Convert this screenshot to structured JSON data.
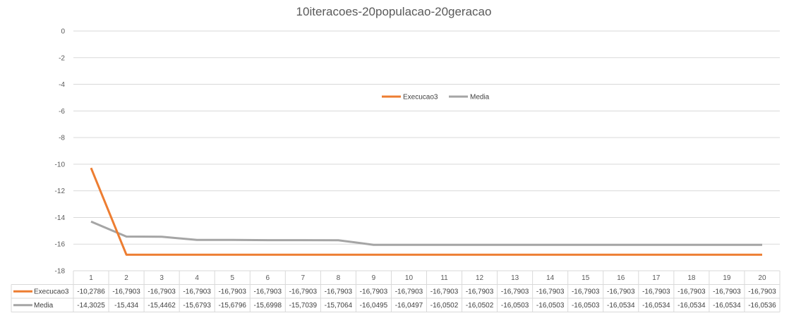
{
  "chart_data": {
    "type": "line",
    "title": "10iteracoes-20populacao-20geracao",
    "ylim": [
      -18,
      0
    ],
    "y_ticks": [
      "0",
      "-2",
      "-4",
      "-6",
      "-8",
      "-10",
      "-12",
      "-14",
      "-16",
      "-18"
    ],
    "y_tick_values": [
      0,
      -2,
      -4,
      -6,
      -8,
      -10,
      -12,
      -14,
      -16,
      -18
    ],
    "categories": [
      "1",
      "2",
      "3",
      "4",
      "5",
      "6",
      "7",
      "8",
      "9",
      "10",
      "11",
      "12",
      "13",
      "14",
      "15",
      "16",
      "17",
      "18",
      "19",
      "20"
    ],
    "grid": true,
    "legend_position": "center-right",
    "series": [
      {
        "name": "Execucao3",
        "color": "#ED7D31",
        "values": [
          -10.2786,
          -16.7903,
          -16.7903,
          -16.7903,
          -16.7903,
          -16.7903,
          -16.7903,
          -16.7903,
          -16.7903,
          -16.7903,
          -16.7903,
          -16.7903,
          -16.7903,
          -16.7903,
          -16.7903,
          -16.7903,
          -16.7903,
          -16.7903,
          -16.7903,
          -16.7903
        ],
        "table_labels": [
          "-10,2786",
          "-16,7903",
          "-16,7903",
          "-16,7903",
          "-16,7903",
          "-16,7903",
          "-16,7903",
          "-16,7903",
          "-16,7903",
          "-16,7903",
          "-16,7903",
          "-16,7903",
          "-16,7903",
          "-16,7903",
          "-16,7903",
          "-16,7903",
          "-16,7903",
          "-16,7903",
          "-16,7903",
          "-16,7903"
        ]
      },
      {
        "name": "Media",
        "color": "#A5A5A5",
        "values": [
          -14.3025,
          -15.434,
          -15.4462,
          -15.6793,
          -15.6796,
          -15.6998,
          -15.7039,
          -15.7064,
          -16.0495,
          -16.0497,
          -16.0502,
          -16.0502,
          -16.0503,
          -16.0503,
          -16.0503,
          -16.0534,
          -16.0534,
          -16.0534,
          -16.0534,
          -16.0536
        ],
        "table_labels": [
          "-14,3025",
          "-15,434",
          "-15,4462",
          "-15,6793",
          "-15,6796",
          "-15,6998",
          "-15,7039",
          "-15,7064",
          "-16,0495",
          "-16,0497",
          "-16,0502",
          "-16,0502",
          "-16,0503",
          "-16,0503",
          "-16,0503",
          "-16,0534",
          "-16,0534",
          "-16,0534",
          "-16,0534",
          "-16,0536"
        ]
      }
    ]
  }
}
